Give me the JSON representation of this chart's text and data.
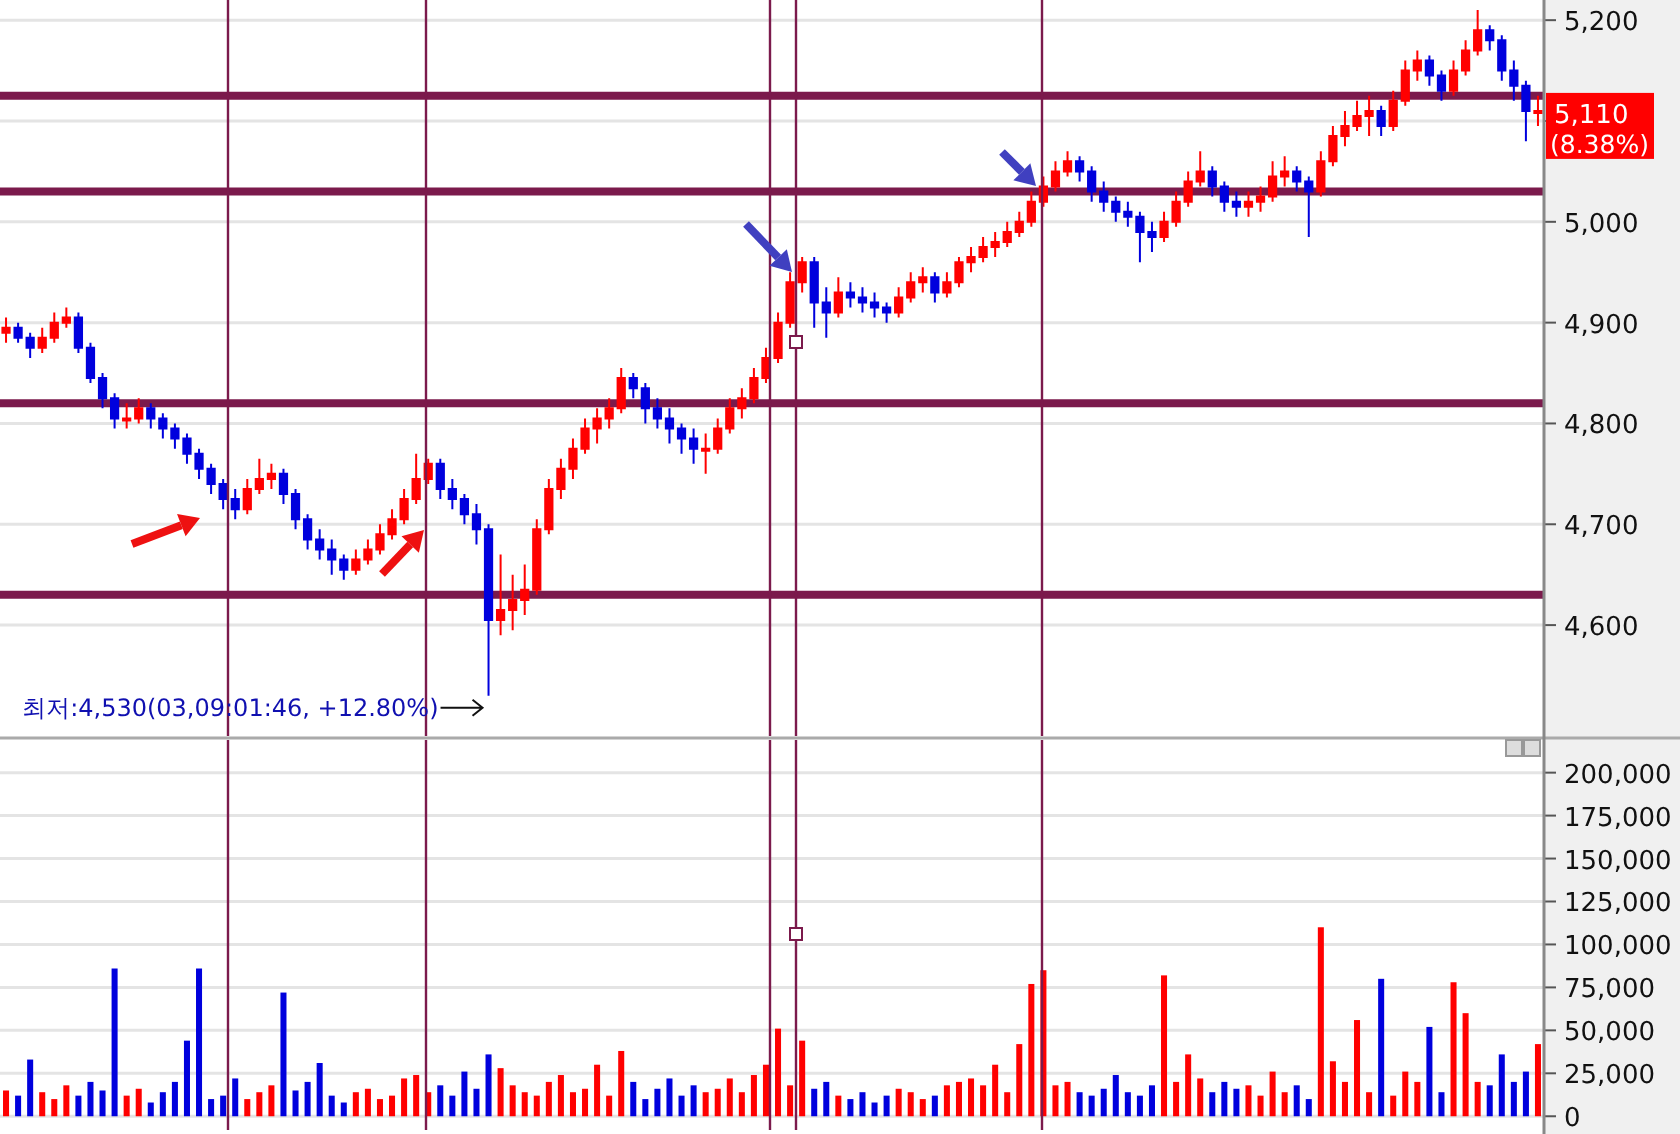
{
  "chart_data": [
    {
      "type": "candlestick",
      "tick_labels": "y",
      "grid": "y",
      "ylim": [
        4490,
        5220
      ],
      "yticks": [
        {
          "value": 4600,
          "label": "4,600"
        },
        {
          "value": 4700,
          "label": "4,700"
        },
        {
          "value": 4800,
          "label": "4,800"
        },
        {
          "value": 4900,
          "label": "4,900"
        },
        {
          "value": 5000,
          "label": "5,000"
        },
        {
          "value": 5100,
          "label": null
        },
        {
          "value": 5200,
          "label": "5,200"
        }
      ],
      "categories": [
        null,
        null,
        null,
        null,
        null,
        null,
        null,
        null,
        null,
        null,
        null,
        null,
        null,
        null,
        null,
        null,
        null,
        null,
        null,
        null,
        null,
        null,
        null,
        null,
        null,
        null,
        null,
        null,
        null,
        null,
        null,
        null,
        null,
        null,
        null,
        null,
        null,
        null,
        null,
        null,
        null,
        null,
        null,
        null,
        null,
        null,
        null,
        null,
        null,
        null,
        null,
        null,
        null,
        null,
        null,
        null,
        null,
        null,
        null,
        null,
        null,
        null,
        null,
        null,
        null,
        null,
        null,
        null,
        null,
        null,
        null,
        null,
        null,
        null,
        null,
        null,
        null,
        null,
        null,
        null,
        null,
        null,
        null,
        null,
        null,
        null,
        null,
        null,
        null,
        null,
        null,
        null,
        null,
        null,
        null,
        null,
        null,
        null,
        null,
        null,
        null,
        null,
        null,
        null,
        null,
        null,
        null,
        null,
        null,
        null,
        null,
        null,
        null,
        null,
        null,
        null,
        null,
        null,
        null,
        null,
        null,
        null,
        null,
        null,
        null,
        null,
        null,
        null
      ],
      "ohlc": [
        [
          4890,
          4905,
          4880,
          4895
        ],
        [
          4895,
          4900,
          4880,
          4885
        ],
        [
          4885,
          4890,
          4865,
          4875
        ],
        [
          4875,
          4895,
          4870,
          4885
        ],
        [
          4885,
          4910,
          4880,
          4900
        ],
        [
          4900,
          4915,
          4895,
          4905
        ],
        [
          4905,
          4910,
          4870,
          4875
        ],
        [
          4875,
          4880,
          4840,
          4845
        ],
        [
          4845,
          4850,
          4815,
          4825
        ],
        [
          4825,
          4830,
          4795,
          4805
        ],
        [
          4805,
          4820,
          4795,
          4805
        ],
        [
          4805,
          4825,
          4800,
          4815
        ],
        [
          4815,
          4820,
          4795,
          4805
        ],
        [
          4805,
          4810,
          4785,
          4795
        ],
        [
          4795,
          4800,
          4775,
          4785
        ],
        [
          4785,
          4790,
          4760,
          4770
        ],
        [
          4770,
          4775,
          4745,
          4755
        ],
        [
          4755,
          4760,
          4730,
          4740
        ],
        [
          4740,
          4745,
          4715,
          4725
        ],
        [
          4725,
          4735,
          4705,
          4715
        ],
        [
          4715,
          4745,
          4710,
          4735
        ],
        [
          4735,
          4765,
          4730,
          4745
        ],
        [
          4745,
          4760,
          4735,
          4750
        ],
        [
          4750,
          4755,
          4720,
          4730
        ],
        [
          4730,
          4735,
          4695,
          4705
        ],
        [
          4705,
          4710,
          4675,
          4685
        ],
        [
          4685,
          4695,
          4665,
          4675
        ],
        [
          4675,
          4685,
          4650,
          4665
        ],
        [
          4665,
          4670,
          4645,
          4655
        ],
        [
          4655,
          4675,
          4650,
          4665
        ],
        [
          4665,
          4685,
          4660,
          4675
        ],
        [
          4675,
          4700,
          4670,
          4690
        ],
        [
          4690,
          4715,
          4685,
          4705
        ],
        [
          4705,
          4735,
          4700,
          4725
        ],
        [
          4725,
          4770,
          4720,
          4745
        ],
        [
          4745,
          4765,
          4740,
          4760
        ],
        [
          4760,
          4765,
          4725,
          4735
        ],
        [
          4735,
          4745,
          4715,
          4725
        ],
        [
          4725,
          4730,
          4700,
          4710
        ],
        [
          4710,
          4720,
          4680,
          4695
        ],
        [
          4695,
          4700,
          4530,
          4605
        ],
        [
          4605,
          4670,
          4590,
          4615
        ],
        [
          4615,
          4650,
          4595,
          4625
        ],
        [
          4625,
          4660,
          4610,
          4635
        ],
        [
          4635,
          4705,
          4630,
          4695
        ],
        [
          4695,
          4745,
          4690,
          4735
        ],
        [
          4735,
          4765,
          4725,
          4755
        ],
        [
          4755,
          4785,
          4745,
          4775
        ],
        [
          4775,
          4805,
          4770,
          4795
        ],
        [
          4795,
          4815,
          4780,
          4805
        ],
        [
          4805,
          4825,
          4795,
          4815
        ],
        [
          4815,
          4855,
          4810,
          4845
        ],
        [
          4845,
          4850,
          4825,
          4835
        ],
        [
          4835,
          4840,
          4800,
          4815
        ],
        [
          4815,
          4825,
          4795,
          4805
        ],
        [
          4805,
          4815,
          4780,
          4795
        ],
        [
          4795,
          4800,
          4770,
          4785
        ],
        [
          4785,
          4795,
          4760,
          4775
        ],
        [
          4775,
          4790,
          4750,
          4775
        ],
        [
          4775,
          4805,
          4770,
          4795
        ],
        [
          4795,
          4825,
          4790,
          4815
        ],
        [
          4815,
          4835,
          4805,
          4825
        ],
        [
          4825,
          4855,
          4820,
          4845
        ],
        [
          4845,
          4875,
          4840,
          4865
        ],
        [
          4865,
          4910,
          4860,
          4900
        ],
        [
          4900,
          4950,
          4895,
          4940
        ],
        [
          4940,
          4965,
          4930,
          4960
        ],
        [
          4960,
          4965,
          4895,
          4920
        ],
        [
          4920,
          4935,
          4885,
          4910
        ],
        [
          4910,
          4945,
          4905,
          4930
        ],
        [
          4930,
          4940,
          4915,
          4925
        ],
        [
          4925,
          4935,
          4910,
          4920
        ],
        [
          4920,
          4930,
          4905,
          4915
        ],
        [
          4915,
          4920,
          4900,
          4910
        ],
        [
          4910,
          4935,
          4905,
          4925
        ],
        [
          4925,
          4950,
          4920,
          4940
        ],
        [
          4940,
          4955,
          4930,
          4945
        ],
        [
          4945,
          4950,
          4920,
          4930
        ],
        [
          4930,
          4950,
          4925,
          4940
        ],
        [
          4940,
          4965,
          4935,
          4960
        ],
        [
          4960,
          4975,
          4950,
          4965
        ],
        [
          4965,
          4985,
          4960,
          4975
        ],
        [
          4975,
          4990,
          4965,
          4980
        ],
        [
          4980,
          5000,
          4975,
          4990
        ],
        [
          4990,
          5010,
          4985,
          5000
        ],
        [
          5000,
          5030,
          4995,
          5020
        ],
        [
          5020,
          5045,
          5015,
          5035
        ],
        [
          5035,
          5060,
          5030,
          5050
        ],
        [
          5050,
          5070,
          5045,
          5060
        ],
        [
          5060,
          5065,
          5040,
          5050
        ],
        [
          5050,
          5055,
          5020,
          5030
        ],
        [
          5030,
          5040,
          5010,
          5020
        ],
        [
          5020,
          5025,
          5000,
          5010
        ],
        [
          5010,
          5020,
          4995,
          5005
        ],
        [
          5005,
          5010,
          4960,
          4990
        ],
        [
          4990,
          5000,
          4970,
          4985
        ],
        [
          4985,
          5010,
          4980,
          5000
        ],
        [
          5000,
          5030,
          4995,
          5020
        ],
        [
          5020,
          5050,
          5015,
          5040
        ],
        [
          5040,
          5070,
          5035,
          5050
        ],
        [
          5050,
          5055,
          5025,
          5035
        ],
        [
          5035,
          5040,
          5010,
          5020
        ],
        [
          5020,
          5030,
          5005,
          5015
        ],
        [
          5015,
          5030,
          5005,
          5020
        ],
        [
          5020,
          5035,
          5010,
          5025
        ],
        [
          5025,
          5060,
          5020,
          5045
        ],
        [
          5045,
          5065,
          5035,
          5050
        ],
        [
          5050,
          5055,
          5030,
          5040
        ],
        [
          5040,
          5045,
          4985,
          5030
        ],
        [
          5030,
          5070,
          5025,
          5060
        ],
        [
          5060,
          5095,
          5055,
          5085
        ],
        [
          5085,
          5110,
          5075,
          5095
        ],
        [
          5095,
          5120,
          5090,
          5105
        ],
        [
          5105,
          5125,
          5085,
          5110
        ],
        [
          5110,
          5115,
          5085,
          5095
        ],
        [
          5095,
          5130,
          5090,
          5120
        ],
        [
          5120,
          5160,
          5115,
          5150
        ],
        [
          5150,
          5170,
          5140,
          5160
        ],
        [
          5160,
          5165,
          5135,
          5145
        ],
        [
          5145,
          5150,
          5120,
          5130
        ],
        [
          5130,
          5160,
          5125,
          5150
        ],
        [
          5150,
          5180,
          5145,
          5170
        ],
        [
          5170,
          5210,
          5165,
          5190
        ],
        [
          5190,
          5195,
          5170,
          5180
        ],
        [
          5180,
          5185,
          5140,
          5150
        ],
        [
          5150,
          5160,
          5120,
          5135
        ],
        [
          5135,
          5140,
          5080,
          5110
        ],
        [
          5110,
          5125,
          5095,
          5110
        ]
      ],
      "colors": [
        "#ff0000",
        "#0000dd",
        "#0000dd",
        "#ff0000",
        "#ff0000",
        "#ff0000",
        "#0000dd",
        "#0000dd",
        "#0000dd",
        "#0000dd",
        "#ff0000",
        "#ff0000",
        "#0000dd",
        "#0000dd",
        "#0000dd",
        "#0000dd",
        "#0000dd",
        "#0000dd",
        "#0000dd",
        "#0000dd",
        "#ff0000",
        "#ff0000",
        "#ff0000",
        "#0000dd",
        "#0000dd",
        "#0000dd",
        "#0000dd",
        "#0000dd",
        "#0000dd",
        "#ff0000",
        "#ff0000",
        "#ff0000",
        "#ff0000",
        "#ff0000",
        "#ff0000",
        "#ff0000",
        "#0000dd",
        "#0000dd",
        "#0000dd",
        "#0000dd",
        "#0000dd",
        "#ff0000",
        "#ff0000",
        "#ff0000",
        "#ff0000",
        "#ff0000",
        "#ff0000",
        "#ff0000",
        "#ff0000",
        "#ff0000",
        "#ff0000",
        "#ff0000",
        "#0000dd",
        "#0000dd",
        "#0000dd",
        "#0000dd",
        "#0000dd",
        "#0000dd",
        "#ff0000",
        "#ff0000",
        "#ff0000",
        "#ff0000",
        "#ff0000",
        "#ff0000",
        "#ff0000",
        "#ff0000",
        "#ff0000",
        "#0000dd",
        "#0000dd",
        "#ff0000",
        "#0000dd",
        "#0000dd",
        "#0000dd",
        "#0000dd",
        "#ff0000",
        "#ff0000",
        "#ff0000",
        "#0000dd",
        "#ff0000",
        "#ff0000",
        "#ff0000",
        "#ff0000",
        "#ff0000",
        "#ff0000",
        "#ff0000",
        "#ff0000",
        "#ff0000",
        "#ff0000",
        "#ff0000",
        "#0000dd",
        "#0000dd",
        "#0000dd",
        "#0000dd",
        "#0000dd",
        "#0000dd",
        "#0000dd",
        "#ff0000",
        "#ff0000",
        "#ff0000",
        "#ff0000",
        "#0000dd",
        "#0000dd",
        "#0000dd",
        "#ff0000",
        "#ff0000",
        "#ff0000",
        "#ff0000",
        "#0000dd",
        "#0000dd",
        "#ff0000",
        "#ff0000",
        "#ff0000",
        "#ff0000",
        "#ff0000",
        "#0000dd",
        "#ff0000",
        "#ff0000",
        "#ff0000",
        "#0000dd",
        "#0000dd",
        "#ff0000",
        "#ff0000",
        "#ff0000",
        "#0000dd",
        "#0000dd",
        "#0000dd",
        "#0000dd",
        "#ff0000"
      ],
      "ref_lines": [
        {
          "axis": "y",
          "value": 5125,
          "color": "#7b1a4c"
        },
        {
          "axis": "y",
          "value": 5030,
          "color": "#7b1a4c"
        },
        {
          "axis": "y",
          "value": 4820,
          "color": "#7b1a4c"
        },
        {
          "axis": "y",
          "value": 4630,
          "color": "#7b1a4c"
        }
      ],
      "annotations": [
        "최저:4,530(03,09:01:46, +12.80%)",
        "5,110",
        "(8.38%)"
      ]
    },
    {
      "type": "bar",
      "tick_labels": "y",
      "grid": "y",
      "ylim": [
        -8000,
        219000
      ],
      "yticks": [
        0,
        {
          "value": 25000,
          "label": "25,000"
        },
        {
          "value": 50000,
          "label": "50,000"
        },
        {
          "value": 75000,
          "label": "75,000"
        },
        {
          "value": 100000,
          "label": "100,000"
        },
        {
          "value": 125000,
          "label": "125,000"
        },
        {
          "value": 150000,
          "label": "150,000"
        },
        {
          "value": 175000,
          "label": "175,000"
        },
        {
          "value": 200000,
          "label": "200,000"
        }
      ],
      "categories": [
        null,
        null,
        null,
        null,
        null,
        null,
        null,
        null,
        null,
        null,
        null,
        null,
        null,
        null,
        null,
        null,
        null,
        null,
        null,
        null,
        null,
        null,
        null,
        null,
        null,
        null,
        null,
        null,
        null,
        null,
        null,
        null,
        null,
        null,
        null,
        null,
        null,
        null,
        null,
        null,
        null,
        null,
        null,
        null,
        null,
        null,
        null,
        null,
        null,
        null,
        null,
        null,
        null,
        null,
        null,
        null,
        null,
        null,
        null,
        null,
        null,
        null,
        null,
        null,
        null,
        null,
        null,
        null,
        null,
        null,
        null,
        null,
        null,
        null,
        null,
        null,
        null,
        null,
        null,
        null,
        null,
        null,
        null,
        null,
        null,
        null,
        null,
        null,
        null,
        null,
        null,
        null,
        null,
        null,
        null,
        null,
        null,
        null,
        null,
        null,
        null,
        null,
        null,
        null,
        null,
        null,
        null,
        null,
        null,
        null,
        null,
        null,
        null,
        null,
        null,
        null,
        null,
        null,
        null,
        null,
        null,
        null,
        null,
        null,
        null,
        null,
        null,
        null
      ],
      "values": [
        15000,
        12000,
        33000,
        14000,
        10000,
        18000,
        12000,
        20000,
        15000,
        86000,
        12000,
        16000,
        8000,
        14000,
        20000,
        44000,
        86000,
        10000,
        12000,
        22000,
        10000,
        14000,
        18000,
        72000,
        15000,
        20000,
        31000,
        12000,
        8000,
        14000,
        16000,
        10000,
        12000,
        22000,
        24000,
        14000,
        18000,
        12000,
        26000,
        16000,
        36000,
        28000,
        18000,
        14000,
        12000,
        20000,
        24000,
        14000,
        16000,
        30000,
        12000,
        38000,
        20000,
        10000,
        16000,
        22000,
        12000,
        18000,
        14000,
        16000,
        22000,
        14000,
        24000,
        30000,
        51000,
        18000,
        44000,
        16000,
        20000,
        12000,
        10000,
        14000,
        8000,
        12000,
        16000,
        14000,
        10000,
        12000,
        18000,
        20000,
        22000,
        18000,
        30000,
        14000,
        42000,
        77000,
        85000,
        18000,
        20000,
        14000,
        12000,
        16000,
        24000,
        14000,
        12000,
        18000,
        82000,
        20000,
        36000,
        22000,
        14000,
        20000,
        16000,
        18000,
        12000,
        26000,
        14000,
        18000,
        10000,
        110000,
        32000,
        20000,
        56000,
        14000,
        80000,
        12000,
        26000,
        20000,
        52000,
        14000,
        78000,
        60000,
        20000,
        18000,
        36000,
        20000,
        26000,
        42000
      ],
      "colors": [
        "#ff0000",
        "#0000dd",
        "#0000dd",
        "#ff0000",
        "#ff0000",
        "#ff0000",
        "#0000dd",
        "#0000dd",
        "#0000dd",
        "#0000dd",
        "#ff0000",
        "#ff0000",
        "#0000dd",
        "#0000dd",
        "#0000dd",
        "#0000dd",
        "#0000dd",
        "#0000dd",
        "#0000dd",
        "#0000dd",
        "#ff0000",
        "#ff0000",
        "#ff0000",
        "#0000dd",
        "#0000dd",
        "#0000dd",
        "#0000dd",
        "#0000dd",
        "#0000dd",
        "#ff0000",
        "#ff0000",
        "#ff0000",
        "#ff0000",
        "#ff0000",
        "#ff0000",
        "#ff0000",
        "#0000dd",
        "#0000dd",
        "#0000dd",
        "#0000dd",
        "#0000dd",
        "#ff0000",
        "#ff0000",
        "#ff0000",
        "#ff0000",
        "#ff0000",
        "#ff0000",
        "#ff0000",
        "#ff0000",
        "#ff0000",
        "#ff0000",
        "#ff0000",
        "#0000dd",
        "#0000dd",
        "#0000dd",
        "#0000dd",
        "#0000dd",
        "#0000dd",
        "#ff0000",
        "#ff0000",
        "#ff0000",
        "#ff0000",
        "#ff0000",
        "#ff0000",
        "#ff0000",
        "#ff0000",
        "#ff0000",
        "#0000dd",
        "#0000dd",
        "#ff0000",
        "#0000dd",
        "#0000dd",
        "#0000dd",
        "#0000dd",
        "#ff0000",
        "#ff0000",
        "#ff0000",
        "#0000dd",
        "#ff0000",
        "#ff0000",
        "#ff0000",
        "#ff0000",
        "#ff0000",
        "#ff0000",
        "#ff0000",
        "#ff0000",
        "#ff0000",
        "#ff0000",
        "#ff0000",
        "#0000dd",
        "#0000dd",
        "#0000dd",
        "#0000dd",
        "#0000dd",
        "#0000dd",
        "#0000dd",
        "#ff0000",
        "#ff0000",
        "#ff0000",
        "#ff0000",
        "#0000dd",
        "#0000dd",
        "#0000dd",
        "#ff0000",
        "#ff0000",
        "#ff0000",
        "#ff0000",
        "#0000dd",
        "#0000dd",
        "#ff0000",
        "#ff0000",
        "#ff0000",
        "#ff0000",
        "#ff0000",
        "#0000dd",
        "#ff0000",
        "#ff0000",
        "#ff0000",
        "#0000dd",
        "#0000dd",
        "#ff0000",
        "#ff0000",
        "#ff0000",
        "#0000dd",
        "#0000dd",
        "#0000dd",
        "#0000dd",
        "#ff0000"
      ]
    }
  ]
}
